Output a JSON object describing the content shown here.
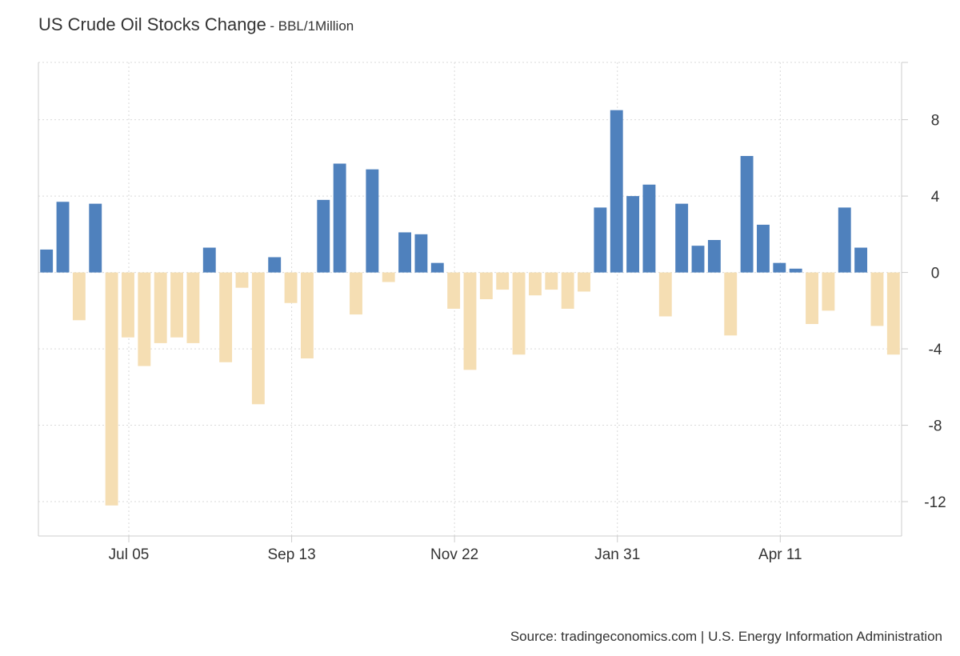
{
  "header": {
    "title": "US Crude Oil Stocks Change",
    "subtitle": "- BBL/1Million"
  },
  "footer": {
    "source": "Source: tradingeconomics.com | U.S. Energy Information Administration"
  },
  "chart_data": {
    "type": "bar",
    "title": "US Crude Oil Stocks Change",
    "subtitle": "- BBL/1Million",
    "xlabel": "",
    "ylabel": "",
    "ylim": [
      -13.8,
      11
    ],
    "yticks": [
      8,
      4,
      0,
      -4,
      -8,
      -12
    ],
    "ytick_labels": [
      "8",
      "4",
      "0",
      "-4",
      "-8",
      "-12"
    ],
    "y_axis_position": "right",
    "grid": true,
    "positive_color": "#4f81bd",
    "negative_color": "#f5deb3",
    "xtick_labels": [
      "Jul 05",
      "Sep 13",
      "Nov 22",
      "Jan 31",
      "Apr 11"
    ],
    "xtick_indices": [
      5.05,
      15.05,
      25.05,
      35.05,
      45.05
    ],
    "values": [
      1.2,
      3.7,
      -2.5,
      3.6,
      -12.2,
      -3.4,
      -4.9,
      -3.7,
      -3.4,
      -3.7,
      1.3,
      -4.7,
      -0.8,
      -6.9,
      0.8,
      -1.6,
      -4.5,
      3.8,
      5.7,
      -2.2,
      5.4,
      -0.5,
      2.1,
      2.0,
      0.5,
      -1.9,
      -5.1,
      -1.4,
      -0.9,
      -4.3,
      -1.2,
      -0.9,
      -1.9,
      -1.0,
      3.4,
      8.5,
      4.0,
      4.6,
      -2.3,
      3.6,
      1.4,
      1.7,
      -3.3,
      6.1,
      2.5,
      0.5,
      0.2,
      -2.7,
      -2.0,
      3.4,
      1.3,
      -2.8,
      -4.3
    ]
  }
}
